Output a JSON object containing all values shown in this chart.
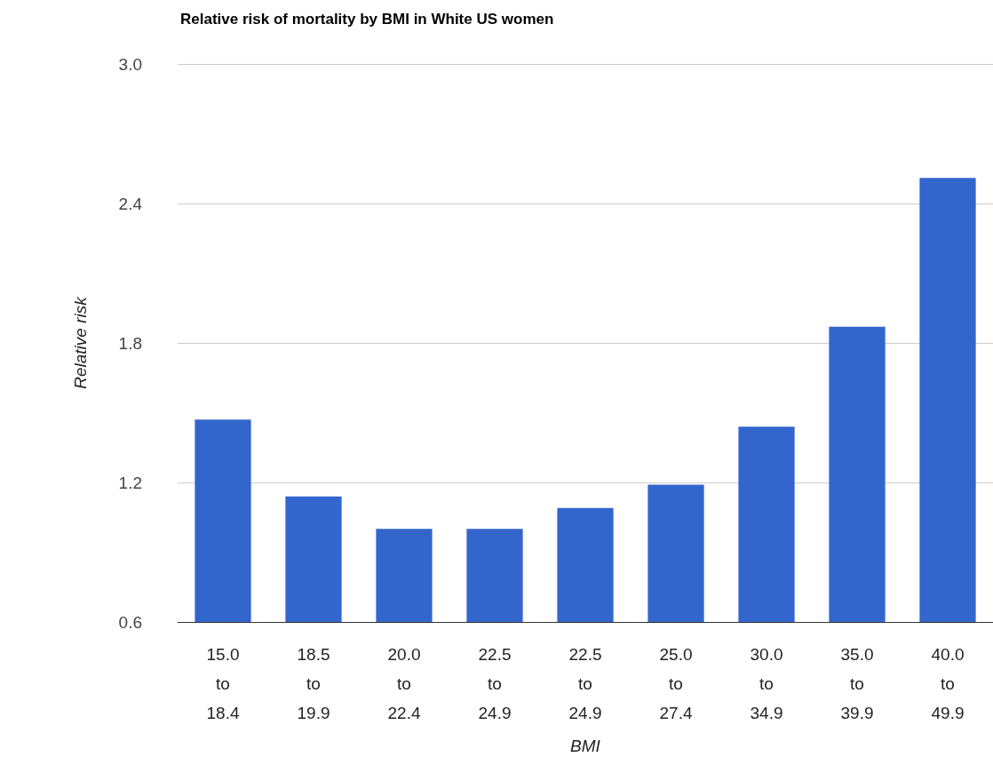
{
  "chart_data": {
    "type": "bar",
    "title": "Relative risk of mortality by BMI in White US women",
    "xlabel": "BMI",
    "ylabel": "Relative risk",
    "categories": [
      "15.0 to 18.4",
      "18.5 to 19.9",
      "20.0 to 22.4",
      "22.5 to 24.9",
      "22.5 to 24.9",
      "25.0 to 27.4",
      "30.0 to 34.9",
      "35.0 to 39.9",
      "40.0 to 49.9"
    ],
    "values": [
      1.47,
      1.14,
      1.0,
      1.0,
      1.09,
      1.19,
      1.44,
      1.87,
      2.51
    ],
    "color": "#3366cc",
    "ylim": [
      0.6,
      3.0
    ],
    "yticks": [
      {
        "value": 0.6,
        "label": "0.6"
      },
      {
        "value": 1.2,
        "label": "1.2"
      },
      {
        "value": 1.8,
        "label": "1.8"
      },
      {
        "value": 2.4,
        "label": "2.4"
      },
      {
        "value": 3.0,
        "label": "3.0"
      }
    ],
    "grid": true
  }
}
